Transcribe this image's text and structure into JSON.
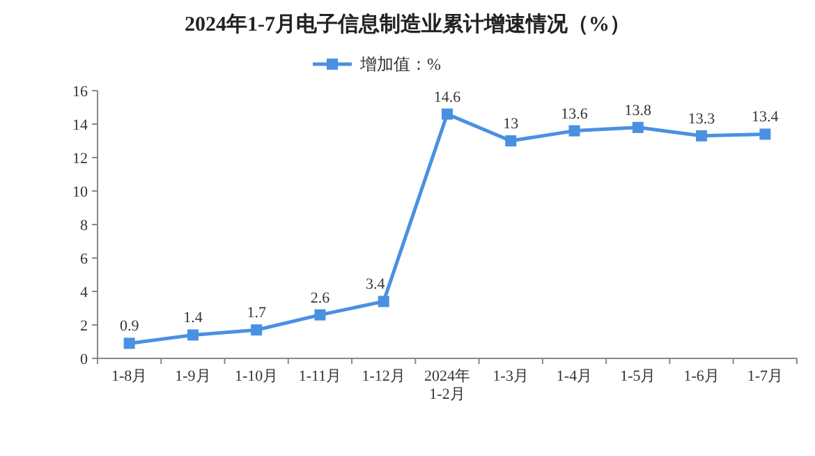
{
  "chart_data": {
    "type": "line",
    "title": "2024年1-7月电子信息制造业累计增速情况（%）",
    "categories": [
      "1-8月",
      "1-9月",
      "1-10月",
      "1-11月",
      "1-12月",
      "2024年\n1-2月",
      "1-3月",
      "1-4月",
      "1-5月",
      "1-6月",
      "1-7月"
    ],
    "series": [
      {
        "name": "增加值：%",
        "color": "#4a90e2",
        "values": [
          0.9,
          1.4,
          1.7,
          2.6,
          3.4,
          14.6,
          13,
          13.6,
          13.8,
          13.3,
          13.4
        ]
      }
    ],
    "ylim": [
      0,
      16
    ],
    "yticks": [
      0,
      2,
      4,
      6,
      8,
      10,
      12,
      14,
      16
    ],
    "data_labels": true,
    "legend": "top",
    "marker": "square",
    "grid": false
  }
}
